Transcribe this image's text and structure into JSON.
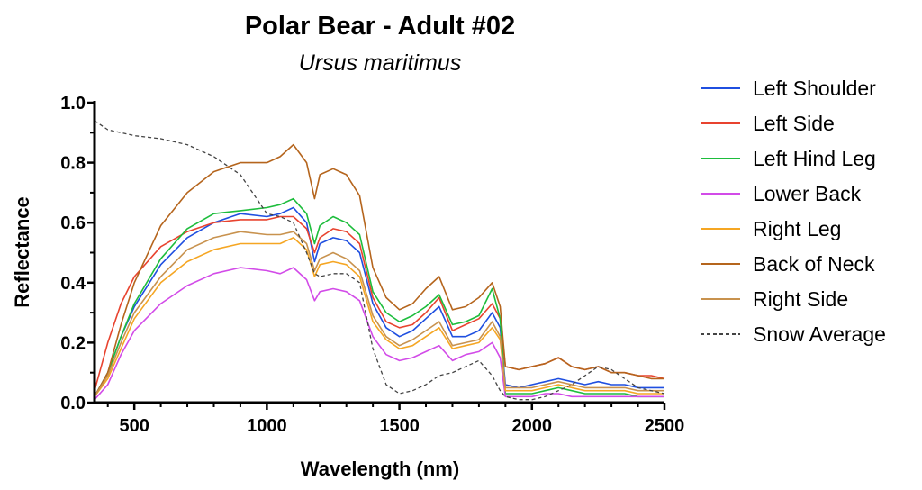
{
  "chart_data": {
    "type": "line",
    "title": "Polar Bear - Adult #02",
    "subtitle": "Ursus maritimus",
    "xlabel": "Wavelength (nm)",
    "ylabel": "Reflectance",
    "xlim": [
      350,
      2500
    ],
    "ylim": [
      0,
      1.0
    ],
    "xticks": [
      500,
      1000,
      1500,
      2000,
      2500
    ],
    "xtick_labels": [
      "500",
      "1000",
      "1500",
      "2000",
      "2500"
    ],
    "yticks": [
      0,
      0.2,
      0.4,
      0.6,
      0.8,
      1.0
    ],
    "ytick_labels": [
      "0.0",
      "0.2",
      "0.4",
      "0.6",
      "0.8",
      "1.0"
    ],
    "grid": false,
    "legend_position": "right",
    "x": [
      350,
      400,
      450,
      500,
      600,
      700,
      800,
      900,
      1000,
      1050,
      1100,
      1150,
      1180,
      1200,
      1250,
      1300,
      1350,
      1400,
      1450,
      1500,
      1550,
      1600,
      1650,
      1700,
      1750,
      1800,
      1850,
      1880,
      1900,
      1950,
      2000,
      2050,
      2100,
      2150,
      2200,
      2250,
      2300,
      2350,
      2400,
      2450,
      2500
    ],
    "series": [
      {
        "name": "Left Shoulder",
        "color": "#1f4fe0",
        "dash": "",
        "values": [
          0.02,
          0.1,
          0.22,
          0.32,
          0.46,
          0.55,
          0.6,
          0.63,
          0.62,
          0.63,
          0.65,
          0.6,
          0.47,
          0.53,
          0.55,
          0.54,
          0.5,
          0.33,
          0.25,
          0.22,
          0.24,
          0.28,
          0.32,
          0.22,
          0.22,
          0.24,
          0.3,
          0.25,
          0.06,
          0.05,
          0.06,
          0.07,
          0.08,
          0.07,
          0.06,
          0.07,
          0.06,
          0.06,
          0.05,
          0.05,
          0.05
        ]
      },
      {
        "name": "Left Side",
        "color": "#e8432f",
        "dash": "",
        "values": [
          0.04,
          0.2,
          0.33,
          0.42,
          0.52,
          0.57,
          0.6,
          0.61,
          0.61,
          0.62,
          0.62,
          0.58,
          0.5,
          0.55,
          0.58,
          0.57,
          0.53,
          0.35,
          0.27,
          0.25,
          0.26,
          0.3,
          0.35,
          0.24,
          0.26,
          0.28,
          0.33,
          0.28,
          0.12,
          0.11,
          0.12,
          0.13,
          0.15,
          0.12,
          0.11,
          0.12,
          0.1,
          0.1,
          0.09,
          0.09,
          0.08
        ]
      },
      {
        "name": "Left Hind Leg",
        "color": "#1dbd3c",
        "dash": "",
        "values": [
          0.02,
          0.1,
          0.22,
          0.33,
          0.48,
          0.58,
          0.63,
          0.64,
          0.65,
          0.66,
          0.68,
          0.63,
          0.53,
          0.59,
          0.62,
          0.6,
          0.56,
          0.37,
          0.3,
          0.27,
          0.29,
          0.32,
          0.36,
          0.26,
          0.27,
          0.29,
          0.38,
          0.28,
          0.03,
          0.03,
          0.03,
          0.04,
          0.05,
          0.04,
          0.03,
          0.03,
          0.03,
          0.03,
          0.02,
          0.02,
          0.02
        ]
      },
      {
        "name": "Lower Back",
        "color": "#d24be8",
        "dash": "",
        "values": [
          0.01,
          0.06,
          0.16,
          0.24,
          0.33,
          0.39,
          0.43,
          0.45,
          0.44,
          0.43,
          0.45,
          0.41,
          0.34,
          0.37,
          0.38,
          0.37,
          0.34,
          0.22,
          0.16,
          0.14,
          0.15,
          0.17,
          0.19,
          0.14,
          0.16,
          0.17,
          0.2,
          0.15,
          0.02,
          0.02,
          0.02,
          0.03,
          0.03,
          0.02,
          0.02,
          0.02,
          0.02,
          0.02,
          0.02,
          0.02,
          0.02
        ]
      },
      {
        "name": "Right Leg",
        "color": "#f5a623",
        "dash": "",
        "values": [
          0.02,
          0.08,
          0.18,
          0.28,
          0.4,
          0.47,
          0.51,
          0.53,
          0.53,
          0.53,
          0.55,
          0.51,
          0.42,
          0.46,
          0.47,
          0.46,
          0.42,
          0.27,
          0.21,
          0.18,
          0.19,
          0.22,
          0.25,
          0.18,
          0.19,
          0.2,
          0.25,
          0.21,
          0.04,
          0.04,
          0.04,
          0.05,
          0.06,
          0.05,
          0.04,
          0.04,
          0.04,
          0.04,
          0.03,
          0.03,
          0.03
        ]
      },
      {
        "name": "Back of Neck",
        "color": "#b5651d",
        "dash": "",
        "values": [
          0.02,
          0.1,
          0.26,
          0.4,
          0.59,
          0.7,
          0.77,
          0.8,
          0.8,
          0.82,
          0.86,
          0.8,
          0.68,
          0.76,
          0.78,
          0.76,
          0.69,
          0.45,
          0.35,
          0.31,
          0.33,
          0.38,
          0.42,
          0.31,
          0.32,
          0.35,
          0.4,
          0.32,
          0.12,
          0.11,
          0.12,
          0.13,
          0.15,
          0.12,
          0.11,
          0.12,
          0.1,
          0.1,
          0.09,
          0.08,
          0.08
        ]
      },
      {
        "name": "Right Side",
        "color": "#c8924e",
        "dash": "",
        "values": [
          0.02,
          0.09,
          0.2,
          0.3,
          0.42,
          0.51,
          0.55,
          0.57,
          0.56,
          0.56,
          0.57,
          0.53,
          0.44,
          0.48,
          0.5,
          0.48,
          0.44,
          0.29,
          0.22,
          0.19,
          0.21,
          0.24,
          0.27,
          0.19,
          0.2,
          0.21,
          0.27,
          0.22,
          0.05,
          0.05,
          0.05,
          0.06,
          0.07,
          0.06,
          0.05,
          0.05,
          0.05,
          0.05,
          0.04,
          0.04,
          0.04
        ]
      },
      {
        "name": "Snow Average",
        "color": "#444444",
        "dash": "4,3",
        "values": [
          0.94,
          0.91,
          0.9,
          0.89,
          0.88,
          0.86,
          0.82,
          0.76,
          0.63,
          0.62,
          0.6,
          0.5,
          0.43,
          0.42,
          0.43,
          0.43,
          0.4,
          0.18,
          0.06,
          0.03,
          0.04,
          0.06,
          0.09,
          0.1,
          0.12,
          0.14,
          0.09,
          0.04,
          0.02,
          0.01,
          0.01,
          0.02,
          0.04,
          0.06,
          0.09,
          0.12,
          0.11,
          0.08,
          0.05,
          0.04,
          0.03
        ]
      }
    ]
  }
}
